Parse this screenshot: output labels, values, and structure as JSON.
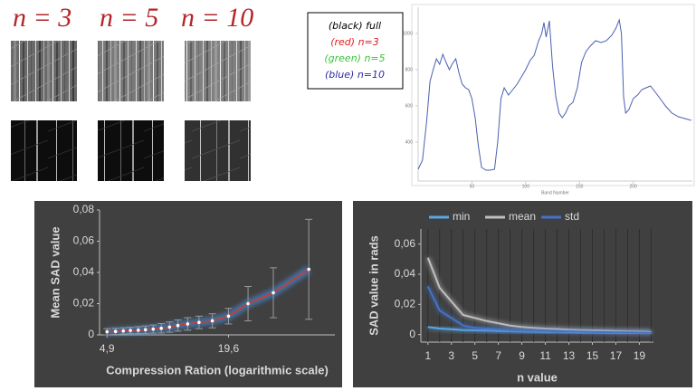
{
  "images": {
    "labels": [
      "n = 3",
      "n = 5",
      "n = 10"
    ]
  },
  "legend_box": {
    "lines": [
      {
        "text": "(black) full",
        "color": "#000000"
      },
      {
        "text": "(red) n=3",
        "color": "#e02020"
      },
      {
        "text": "(green) n=5",
        "color": "#3cc23c"
      },
      {
        "text": "(blue) n=10",
        "color": "#2a2aa8"
      }
    ]
  },
  "chart_data": [
    {
      "type": "line",
      "xlabel": "Band Number",
      "x": [
        0,
        4,
        8,
        11,
        14,
        17,
        20,
        23,
        26,
        29,
        32,
        35,
        38,
        41,
        44,
        47,
        50,
        53,
        56,
        59,
        63,
        67,
        71,
        74,
        77,
        80,
        84,
        88,
        92,
        96,
        100,
        104,
        108,
        112,
        115,
        117,
        119,
        122,
        125,
        128,
        131,
        134,
        137,
        140,
        144,
        148,
        152,
        156,
        160,
        165,
        170,
        175,
        180,
        184,
        187,
        189,
        191,
        193,
        196,
        200,
        204,
        208,
        212,
        216,
        220,
        225,
        230,
        236,
        242,
        248,
        254
      ],
      "series": [
        {
          "color": "#4a5fb0",
          "values": [
            250,
            300,
            520,
            735,
            800,
            860,
            830,
            885,
            840,
            800,
            835,
            860,
            780,
            720,
            700,
            690,
            640,
            535,
            380,
            260,
            245,
            245,
            250,
            400,
            640,
            700,
            660,
            690,
            720,
            760,
            800,
            850,
            880,
            960,
            1000,
            1060,
            980,
            1070,
            820,
            650,
            560,
            535,
            560,
            600,
            620,
            700,
            840,
            900,
            930,
            960,
            950,
            960,
            990,
            1030,
            1075,
            1000,
            650,
            560,
            580,
            640,
            660,
            690,
            700,
            710,
            680,
            640,
            600,
            560,
            540,
            530,
            520
          ]
        }
      ],
      "xlim": [
        0,
        255
      ],
      "ylim": [
        185,
        1145
      ],
      "xticks": [
        50,
        100,
        150,
        200
      ],
      "yticks": [
        400,
        600,
        800,
        1000
      ],
      "background": "#ffffff"
    },
    {
      "type": "errorbar",
      "xlabel": "Compression Ration (logarithmic scale)",
      "ylabel": "Mean SAD value",
      "x": [
        4.9,
        5.4,
        5.9,
        6.4,
        7.0,
        7.6,
        8.3,
        9.1,
        10,
        11,
        12.3,
        14,
        16.3,
        19.6,
        24.5,
        32.7,
        49
      ],
      "values": [
        0.002,
        0.0022,
        0.0025,
        0.0028,
        0.003,
        0.0033,
        0.0037,
        0.0042,
        0.005,
        0.006,
        0.007,
        0.008,
        0.009,
        0.012,
        0.02,
        0.027,
        0.042
      ],
      "errors": [
        0.002,
        0.002,
        0.002,
        0.002,
        0.0022,
        0.0024,
        0.0026,
        0.003,
        0.0033,
        0.0036,
        0.004,
        0.004,
        0.0045,
        0.005,
        0.011,
        0.016,
        0.032
      ],
      "color": "#d03a2a",
      "marker_color": "#ffffff",
      "error_color": "#9a9a9a",
      "xscale": "log",
      "xlim": [
        4.5,
        66
      ],
      "ylim": [
        0,
        0.08
      ],
      "xticks": [
        {
          "value": 4.9,
          "label": "4,9"
        },
        {
          "value": 19.6,
          "label": "19,6"
        }
      ],
      "yticks": [
        0,
        {
          "value": 0.02,
          "label": "0,02"
        },
        {
          "value": 0.04,
          "label": "0,04"
        },
        {
          "value": 0.06,
          "label": "0,06"
        },
        {
          "value": 0.08,
          "label": "0,08"
        }
      ],
      "background": "#404040"
    },
    {
      "type": "line",
      "xlabel": "n value",
      "ylabel": "SAD value in rads",
      "x": [
        1,
        2,
        3,
        4,
        5,
        6,
        7,
        8,
        9,
        10,
        11,
        12,
        13,
        14,
        15,
        16,
        17,
        18,
        19,
        20
      ],
      "series": [
        {
          "name": "min",
          "color": "#5aa7e6",
          "values": [
            0.005,
            0.004,
            0.0035,
            0.003,
            0.0028,
            0.0026,
            0.0024,
            0.0022,
            0.002,
            0.0019,
            0.0018,
            0.0017,
            0.0016,
            0.0015,
            0.0014,
            0.0013,
            0.0012,
            0.0012,
            0.0011,
            0.001
          ]
        },
        {
          "name": "mean",
          "color": "#bfbfbf",
          "values": [
            0.051,
            0.031,
            0.022,
            0.013,
            0.011,
            0.009,
            0.0075,
            0.006,
            0.005,
            0.0045,
            0.004,
            0.0037,
            0.0033,
            0.003,
            0.0028,
            0.0026,
            0.0024,
            0.0022,
            0.002,
            0.0018
          ]
        },
        {
          "name": "std",
          "color": "#4472c4",
          "values": [
            0.032,
            0.016,
            0.011,
            0.006,
            0.0045,
            0.004,
            0.0035,
            0.003,
            0.0027,
            0.0025,
            0.0023,
            0.0021,
            0.002,
            0.0019,
            0.0017,
            0.0016,
            0.0015,
            0.0014,
            0.0013,
            0.0012
          ]
        }
      ],
      "xlim": [
        0.4,
        20.2
      ],
      "ylim": [
        -0.005,
        0.07
      ],
      "xticks": [
        1,
        3,
        5,
        7,
        9,
        11,
        13,
        15,
        17,
        19
      ],
      "yticks": [
        0,
        {
          "value": 0.02,
          "label": "0,02"
        },
        {
          "value": 0.04,
          "label": "0,04"
        },
        {
          "value": 0.06,
          "label": "0,06"
        }
      ],
      "grid": "x",
      "legend": "top",
      "background": "#404040"
    }
  ]
}
